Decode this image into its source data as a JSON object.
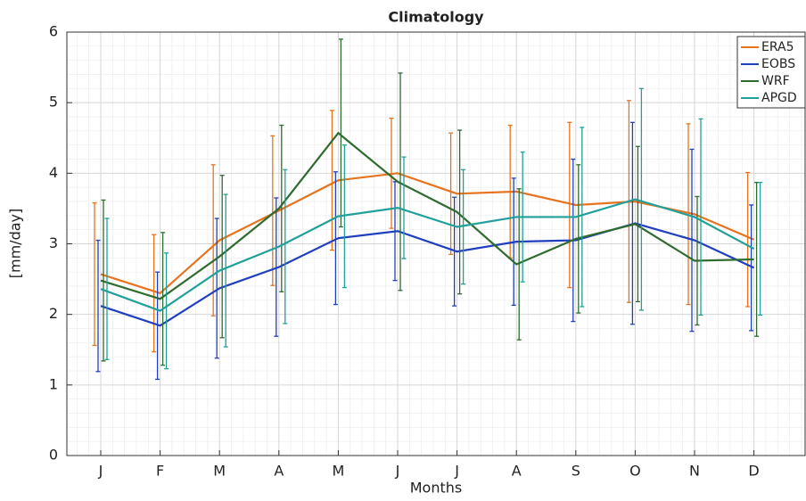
{
  "chart_data": {
    "type": "errorbar-line",
    "title": "Climatology",
    "x_label": "Months",
    "y_label": "[mm/day]",
    "categories": [
      "J",
      "F",
      "M",
      "A",
      "M",
      "J",
      "J",
      "A",
      "S",
      "O",
      "N",
      "D"
    ],
    "series": [
      {
        "name": "ERA5",
        "color": "#e8731e",
        "values": [
          2.57,
          2.3,
          3.05,
          3.47,
          3.9,
          4.0,
          3.71,
          3.74,
          3.55,
          3.6,
          3.42,
          3.06
        ],
        "errors": [
          1.01,
          0.83,
          1.07,
          1.06,
          0.99,
          0.78,
          0.86,
          0.94,
          1.17,
          1.43,
          1.28,
          0.95
        ]
      },
      {
        "name": "EOBS",
        "color": "#1f3fbf",
        "values": [
          2.12,
          1.84,
          2.37,
          2.67,
          3.08,
          3.18,
          2.89,
          3.03,
          3.05,
          3.29,
          3.05,
          2.66
        ],
        "errors": [
          0.93,
          0.76,
          0.99,
          0.98,
          0.94,
          0.7,
          0.77,
          0.9,
          1.15,
          1.43,
          1.29,
          0.89
        ]
      },
      {
        "name": "WRF",
        "color": "#2e6b2e",
        "values": [
          2.48,
          2.22,
          2.82,
          3.5,
          4.57,
          3.88,
          3.45,
          2.71,
          3.07,
          3.28,
          2.76,
          2.78
        ],
        "errors": [
          1.14,
          0.94,
          1.15,
          1.18,
          1.33,
          1.54,
          1.16,
          1.07,
          1.05,
          1.1,
          0.91,
          1.09
        ]
      },
      {
        "name": "APGD",
        "color": "#20a09a",
        "values": [
          2.36,
          2.05,
          2.62,
          2.96,
          3.39,
          3.51,
          3.24,
          3.38,
          3.38,
          3.63,
          3.38,
          2.93
        ],
        "errors": [
          1.0,
          0.82,
          1.08,
          1.09,
          1.01,
          0.72,
          0.81,
          0.92,
          1.27,
          1.57,
          1.39,
          0.94
        ]
      }
    ],
    "ylim": [
      0,
      6
    ],
    "yticks": [
      0,
      1,
      2,
      3,
      4,
      5,
      6
    ],
    "grid": true,
    "minor_grid": true,
    "legend": "northeast"
  }
}
